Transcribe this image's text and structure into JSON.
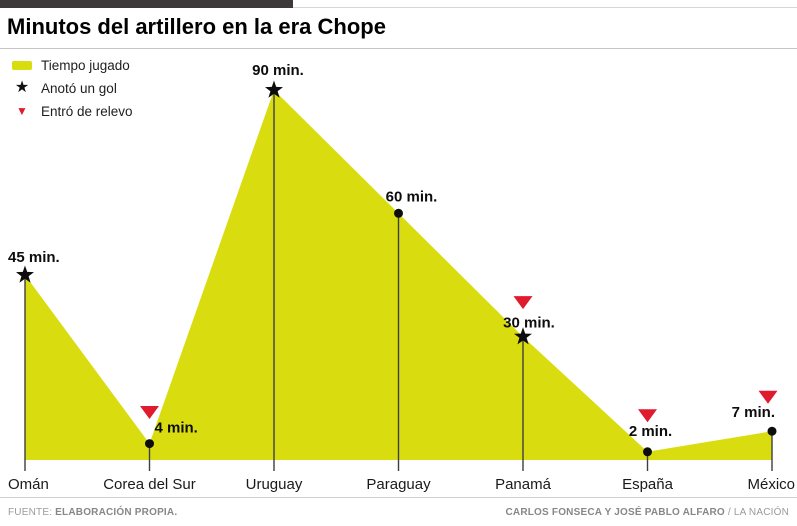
{
  "title": "Minutos del artillero en la era Chope",
  "legend": {
    "items": [
      {
        "label": "Tiempo jugado",
        "icon": "area-swatch"
      },
      {
        "label": "Anotó un gol",
        "icon": "goal-star"
      },
      {
        "label": "Entró de relevo",
        "icon": "substitute-triangle"
      }
    ]
  },
  "chart_data": {
    "type": "area",
    "title": "Minutos del artillero en la era Chope",
    "categories": [
      "Omán",
      "Corea del Sur",
      "Uruguay",
      "Paraguay",
      "Panamá",
      "España",
      "México"
    ],
    "values": [
      45,
      4,
      90,
      60,
      30,
      2,
      7
    ],
    "value_labels": [
      "45 min.",
      "4 min.",
      "90 min.",
      "60 min.",
      "30 min.",
      "2 min.",
      "7 min."
    ],
    "scored_goal": [
      true,
      false,
      true,
      false,
      true,
      false,
      false
    ],
    "entered_as_sub": [
      false,
      true,
      false,
      false,
      true,
      true,
      true
    ],
    "ylim": [
      0,
      90
    ],
    "grid": false,
    "legend_position": "top-left",
    "area_color": "#d9dd0f",
    "marker_color": "#0d0d0d",
    "sub_marker_color": "#e11b2e",
    "stem_color": "#3f3f3f"
  },
  "footer": {
    "source_label": "FUENTE:",
    "source_value": "ELABORACIÓN PROPIA.",
    "credit_bold": "CARLOS FONSECA Y JOSÉ PABLO ALFARO",
    "credit_regular": "/ LA NACIÓN"
  },
  "colors": {
    "accent_bar": "#3d3839",
    "rule": "#c6c6c6"
  }
}
